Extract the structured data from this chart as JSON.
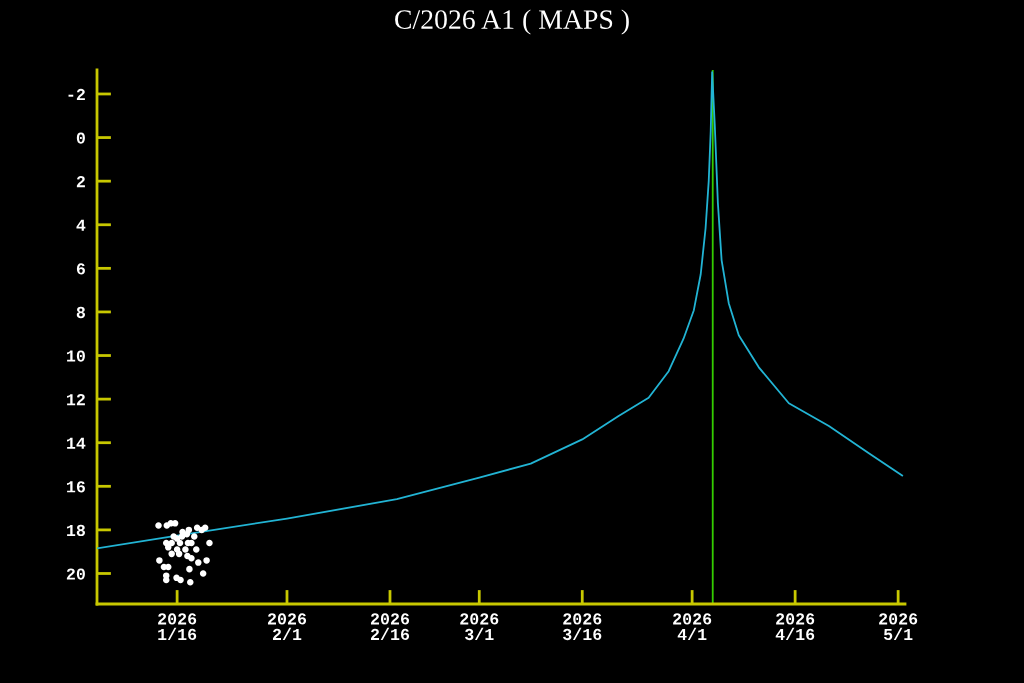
{
  "chart_data": {
    "type": "line",
    "title": "C/2026 A1 ( MAPS )",
    "xlim": [
      "2026-01-04T08:00",
      "2026-05-02"
    ],
    "ylim": [
      21.4,
      -3.1
    ],
    "xticks": [
      {
        "value": "2026-01-16",
        "label": "2026\n1/16"
      },
      {
        "value": "2026-02-01",
        "label": "2026\n2/1"
      },
      {
        "value": "2026-02-16",
        "label": "2026\n2/16"
      },
      {
        "value": "2026-03-01",
        "label": "2026\n3/1"
      },
      {
        "value": "2026-03-16",
        "label": "2026\n3/16"
      },
      {
        "value": "2026-04-01",
        "label": "2026\n4/1"
      },
      {
        "value": "2026-04-16",
        "label": "2026\n4/16"
      },
      {
        "value": "2026-05-01",
        "label": "2026\n5/1"
      }
    ],
    "yticks": [
      -2,
      0,
      2,
      4,
      6,
      8,
      10,
      12,
      14,
      16,
      18,
      20
    ],
    "grid": false,
    "legend": false,
    "ref_lines": [
      {
        "axis": "x",
        "value": "2026-04-04",
        "color": "#33cc00",
        "line_style": "solid"
      }
    ],
    "series": [
      {
        "color": "#22b4d4",
        "marker": "none",
        "line_style": "solid",
        "x": [
          "2026-01-04T08:00",
          "2026-01-16",
          "2026-02-01",
          "2026-02-17",
          "2026-03-01",
          "2026-03-08T12:00",
          "2026-03-16",
          "2026-03-21T07:00",
          "2026-03-25T16:00",
          "2026-03-28T14:00",
          "2026-03-30T18:00",
          "2026-04-01T06:00",
          "2026-04-02T06:00",
          "2026-04-02T23:00",
          "2026-04-03T10:00",
          "2026-04-03T17:00",
          "2026-04-03T22:00",
          "2026-04-04T07:00",
          "2026-04-04T18:00",
          "2026-04-05T07:00",
          "2026-04-06T08:00",
          "2026-04-07T19:00",
          "2026-04-10T17:00",
          "2026-04-15T02:00",
          "2026-04-20T22:00",
          "2026-04-26T19:00",
          "2026-05-01T14:00"
        ],
        "values": [
          18.85,
          18.26,
          17.48,
          16.59,
          15.6,
          14.96,
          13.85,
          12.77,
          11.94,
          10.72,
          9.23,
          7.92,
          6.27,
          4.16,
          2.0,
          -0.3,
          -3.0,
          -0.62,
          3.0,
          5.62,
          7.6,
          9.07,
          10.54,
          12.19,
          13.23,
          14.5,
          15.5
        ]
      },
      {
        "type": "scatter",
        "color": "#ffffff",
        "marker": "circle",
        "x": [
          "2026-01-13T07:00",
          "2026-01-14T12:00",
          "2026-01-15T02:00",
          "2026-01-15T17:00",
          "2026-01-16T19:00",
          "2026-01-17T17:00",
          "2026-01-18T22:00",
          "2026-01-19T14:00",
          "2026-01-20T02:00",
          "2026-01-15T12:00",
          "2026-01-16T00:00",
          "2026-01-16T17:00",
          "2026-01-17T10:00",
          "2026-01-18T12:00",
          "2026-01-14T10:00",
          "2026-01-15T05:00",
          "2026-01-16T10:00",
          "2026-01-17T14:00",
          "2026-01-18T02:00",
          "2026-01-20T17:00",
          "2026-01-14T17:00",
          "2026-01-16T00:00",
          "2026-01-17T05:00",
          "2026-01-18T19:00",
          "2026-01-15T05:00",
          "2026-01-16T07:00",
          "2026-01-17T12:00",
          "2026-01-18T02:00",
          "2026-01-13T10:00",
          "2026-01-19T02:00",
          "2026-01-20T07:00",
          "2026-01-14T02:00",
          "2026-01-14T17:00",
          "2026-01-17T19:00",
          "2026-01-19T19:00",
          "2026-01-14T10:00",
          "2026-01-14T10:00",
          "2026-01-15T22:00",
          "2026-01-16T12:00",
          "2026-01-17T22:00"
        ],
        "values": [
          17.8,
          17.8,
          17.7,
          17.7,
          18.1,
          18.0,
          17.9,
          18.0,
          17.9,
          18.3,
          18.4,
          18.3,
          18.2,
          18.3,
          18.6,
          18.6,
          18.6,
          18.6,
          18.6,
          18.6,
          18.8,
          18.9,
          18.9,
          18.9,
          19.1,
          19.1,
          19.2,
          19.3,
          19.4,
          19.5,
          19.4,
          19.7,
          19.7,
          19.8,
          20.0,
          20.1,
          20.3,
          20.2,
          20.3,
          20.4
        ]
      }
    ]
  }
}
